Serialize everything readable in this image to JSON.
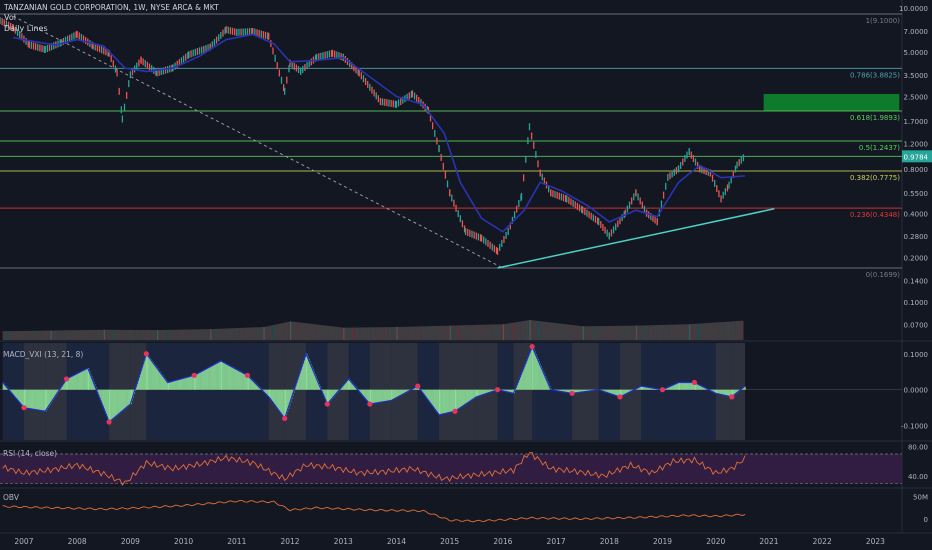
{
  "header": {
    "symbol_line": "TANZANIAN GOLD CORPORATION, 1W, NYSE ARCA & MKT",
    "vol_label": "Vol",
    "daily_lines_label": "Daily Lines"
  },
  "panes": {
    "macd_label": "MACD_VXI (13, 21, 8)",
    "rsi_label": "RSI (14, close)",
    "obv_label": "OBV"
  },
  "colors": {
    "background": "#131722",
    "candle_up": "#26a69a",
    "candle_down": "#ef5350",
    "ma_line": "#2934b3",
    "trendline": "#4dd0c8",
    "fib_line": "#4fa3b3",
    "green_level": "#5bd35b",
    "yellow_level": "#c8d25a",
    "red_level": "#e53935",
    "target_zone": "#0d7a2c",
    "macd_hist_pos": "#8ee09a",
    "macd_line": "#1e2fc8",
    "macd_dots": "#e8335a",
    "rsi_line": "#e0703a",
    "rsi_band": "#3a1f4a",
    "obv_line": "#e0703a"
  },
  "chart_data": {
    "type": "line",
    "title": "TANZANIAN GOLD CORPORATION, 1W, NYSE ARCA & MKT",
    "x_axis": {
      "ticks": [
        "2007",
        "2008",
        "2009",
        "2010",
        "2011",
        "2012",
        "2013",
        "2014",
        "2015",
        "2016",
        "2017",
        "2018",
        "2019",
        "2020",
        "2021",
        "2022",
        "2023"
      ],
      "range": [
        2006.55,
        2023.5
      ]
    },
    "price_axis": {
      "scale": "log",
      "range": [
        0.055,
        10.0
      ],
      "ticks": [
        "10.0000",
        "7.0000",
        "5.0000",
        "3.5000",
        "2.5000",
        "1.7000",
        "1.2000",
        "0.8000",
        "0.5500",
        "0.4000",
        "0.2800",
        "0.2000",
        "0.1400",
        "0.1000",
        "0.0700"
      ],
      "last_price_label": "0.9784",
      "last_price": 0.9784
    },
    "price_series": [
      {
        "x": 2006.55,
        "y": 8.2
      },
      {
        "x": 2006.8,
        "y": 7.3
      },
      {
        "x": 2007.1,
        "y": 5.6
      },
      {
        "x": 2007.4,
        "y": 5.2
      },
      {
        "x": 2007.7,
        "y": 5.8
      },
      {
        "x": 2008.0,
        "y": 6.6
      },
      {
        "x": 2008.3,
        "y": 5.5
      },
      {
        "x": 2008.6,
        "y": 4.9
      },
      {
        "x": 2008.75,
        "y": 3.6
      },
      {
        "x": 2008.85,
        "y": 1.75
      },
      {
        "x": 2009.0,
        "y": 3.5
      },
      {
        "x": 2009.2,
        "y": 4.4
      },
      {
        "x": 2009.5,
        "y": 3.6
      },
      {
        "x": 2009.8,
        "y": 3.9
      },
      {
        "x": 2010.1,
        "y": 4.8
      },
      {
        "x": 2010.5,
        "y": 5.4
      },
      {
        "x": 2010.8,
        "y": 7.1
      },
      {
        "x": 2011.0,
        "y": 6.8
      },
      {
        "x": 2011.3,
        "y": 6.9
      },
      {
        "x": 2011.6,
        "y": 6.4
      },
      {
        "x": 2011.9,
        "y": 2.7
      },
      {
        "x": 2012.0,
        "y": 4.2
      },
      {
        "x": 2012.2,
        "y": 3.7
      },
      {
        "x": 2012.5,
        "y": 4.6
      },
      {
        "x": 2012.8,
        "y": 4.9
      },
      {
        "x": 2013.0,
        "y": 4.6
      },
      {
        "x": 2013.3,
        "y": 3.6
      },
      {
        "x": 2013.7,
        "y": 2.3
      },
      {
        "x": 2014.0,
        "y": 2.2
      },
      {
        "x": 2014.3,
        "y": 2.6
      },
      {
        "x": 2014.6,
        "y": 2.0
      },
      {
        "x": 2014.8,
        "y": 1.1
      },
      {
        "x": 2015.0,
        "y": 0.55
      },
      {
        "x": 2015.3,
        "y": 0.3
      },
      {
        "x": 2015.6,
        "y": 0.27
      },
      {
        "x": 2015.9,
        "y": 0.22
      },
      {
        "x": 2016.1,
        "y": 0.3
      },
      {
        "x": 2016.35,
        "y": 0.52
      },
      {
        "x": 2016.5,
        "y": 1.55
      },
      {
        "x": 2016.7,
        "y": 0.75
      },
      {
        "x": 2016.9,
        "y": 0.55
      },
      {
        "x": 2017.2,
        "y": 0.5
      },
      {
        "x": 2017.5,
        "y": 0.42
      },
      {
        "x": 2017.8,
        "y": 0.35
      },
      {
        "x": 2018.0,
        "y": 0.28
      },
      {
        "x": 2018.3,
        "y": 0.4
      },
      {
        "x": 2018.5,
        "y": 0.55
      },
      {
        "x": 2018.7,
        "y": 0.4
      },
      {
        "x": 2018.9,
        "y": 0.35
      },
      {
        "x": 2019.1,
        "y": 0.7
      },
      {
        "x": 2019.3,
        "y": 0.8
      },
      {
        "x": 2019.5,
        "y": 1.05
      },
      {
        "x": 2019.7,
        "y": 0.8
      },
      {
        "x": 2019.9,
        "y": 0.75
      },
      {
        "x": 2020.1,
        "y": 0.5
      },
      {
        "x": 2020.25,
        "y": 0.62
      },
      {
        "x": 2020.4,
        "y": 0.85
      },
      {
        "x": 2020.55,
        "y": 0.98
      }
    ],
    "ma_series": [
      {
        "x": 2006.8,
        "y": 6.3
      },
      {
        "x": 2007.2,
        "y": 5.9
      },
      {
        "x": 2007.6,
        "y": 5.6
      },
      {
        "x": 2008.0,
        "y": 6.1
      },
      {
        "x": 2008.5,
        "y": 5.5
      },
      {
        "x": 2008.9,
        "y": 3.9
      },
      {
        "x": 2009.3,
        "y": 3.7
      },
      {
        "x": 2009.8,
        "y": 3.9
      },
      {
        "x": 2010.3,
        "y": 4.7
      },
      {
        "x": 2010.8,
        "y": 6.1
      },
      {
        "x": 2011.3,
        "y": 6.6
      },
      {
        "x": 2011.7,
        "y": 5.7
      },
      {
        "x": 2012.0,
        "y": 4.3
      },
      {
        "x": 2012.5,
        "y": 4.4
      },
      {
        "x": 2013.0,
        "y": 4.6
      },
      {
        "x": 2013.5,
        "y": 3.4
      },
      {
        "x": 2014.0,
        "y": 2.5
      },
      {
        "x": 2014.5,
        "y": 2.2
      },
      {
        "x": 2014.9,
        "y": 1.4
      },
      {
        "x": 2015.2,
        "y": 0.65
      },
      {
        "x": 2015.6,
        "y": 0.37
      },
      {
        "x": 2016.0,
        "y": 0.3
      },
      {
        "x": 2016.4,
        "y": 0.42
      },
      {
        "x": 2016.7,
        "y": 0.65
      },
      {
        "x": 2017.1,
        "y": 0.57
      },
      {
        "x": 2017.6,
        "y": 0.45
      },
      {
        "x": 2018.0,
        "y": 0.35
      },
      {
        "x": 2018.5,
        "y": 0.42
      },
      {
        "x": 2018.9,
        "y": 0.38
      },
      {
        "x": 2019.3,
        "y": 0.65
      },
      {
        "x": 2019.7,
        "y": 0.85
      },
      {
        "x": 2020.1,
        "y": 0.7
      },
      {
        "x": 2020.55,
        "y": 0.72
      }
    ],
    "fib_levels": [
      {
        "label": "1(9.1000)",
        "value": 9.1
      },
      {
        "label": "0.786(3.8825)",
        "value": 3.8825
      },
      {
        "label": "0.618(1.9893)",
        "value": 1.9893
      },
      {
        "label": "0.5(1.2437)",
        "value": 1.2437
      },
      {
        "label": "0.382(0.7775)",
        "value": 0.7775
      },
      {
        "label": "0.236(0.4348)",
        "value": 0.4348
      },
      {
        "label": "0(0.1699)",
        "value": 0.1699
      }
    ],
    "extra_levels": [
      0.9784
    ],
    "target_zone": {
      "x0": 2020.9,
      "x1": 2023.45,
      "y_low": 1.99,
      "y_high": 2.6
    },
    "downtrend_line": {
      "from": {
        "x": 2006.8,
        "y": 8.8
      },
      "to": {
        "x": 2016.0,
        "y": 0.17
      }
    },
    "uptrend_line": {
      "from": {
        "x": 2015.9,
        "y": 0.17
      },
      "to": {
        "x": 2021.1,
        "y": 0.43
      }
    },
    "macd": {
      "range": [
        -0.14,
        0.13
      ],
      "ticks": [
        "0.1000",
        "0.0000",
        "-0.1000"
      ],
      "series": [
        {
          "x": 2006.6,
          "y": 0.02
        },
        {
          "x": 2007.0,
          "y": -0.05
        },
        {
          "x": 2007.4,
          "y": -0.06
        },
        {
          "x": 2007.8,
          "y": 0.03
        },
        {
          "x": 2008.2,
          "y": 0.06
        },
        {
          "x": 2008.6,
          "y": -0.09
        },
        {
          "x": 2009.0,
          "y": -0.04
        },
        {
          "x": 2009.3,
          "y": 0.1
        },
        {
          "x": 2009.7,
          "y": 0.02
        },
        {
          "x": 2010.2,
          "y": 0.04
        },
        {
          "x": 2010.7,
          "y": 0.08
        },
        {
          "x": 2011.2,
          "y": 0.04
        },
        {
          "x": 2011.6,
          "y": -0.02
        },
        {
          "x": 2011.9,
          "y": -0.08
        },
        {
          "x": 2012.3,
          "y": 0.1
        },
        {
          "x": 2012.7,
          "y": -0.04
        },
        {
          "x": 2013.1,
          "y": 0.03
        },
        {
          "x": 2013.5,
          "y": -0.04
        },
        {
          "x": 2013.9,
          "y": -0.03
        },
        {
          "x": 2014.4,
          "y": 0.01
        },
        {
          "x": 2014.8,
          "y": -0.07
        },
        {
          "x": 2015.1,
          "y": -0.06
        },
        {
          "x": 2015.5,
          "y": -0.02
        },
        {
          "x": 2015.9,
          "y": 0.0
        },
        {
          "x": 2016.2,
          "y": -0.01
        },
        {
          "x": 2016.55,
          "y": 0.12
        },
        {
          "x": 2016.9,
          "y": 0.0
        },
        {
          "x": 2017.3,
          "y": -0.01
        },
        {
          "x": 2017.8,
          "y": 0.0
        },
        {
          "x": 2018.2,
          "y": -0.02
        },
        {
          "x": 2018.6,
          "y": 0.01
        },
        {
          "x": 2019.0,
          "y": 0.0
        },
        {
          "x": 2019.3,
          "y": 0.02
        },
        {
          "x": 2019.6,
          "y": 0.02
        },
        {
          "x": 2020.0,
          "y": -0.01
        },
        {
          "x": 2020.3,
          "y": -0.02
        },
        {
          "x": 2020.55,
          "y": 0.01
        }
      ]
    },
    "rsi": {
      "range": [
        25,
        85
      ],
      "ticks": [
        "80.00",
        "40.00"
      ],
      "upper": 70,
      "lower": 30,
      "series": [
        {
          "x": 2006.6,
          "y": 52
        },
        {
          "x": 2007.0,
          "y": 44
        },
        {
          "x": 2007.5,
          "y": 48
        },
        {
          "x": 2008.0,
          "y": 55
        },
        {
          "x": 2008.5,
          "y": 43
        },
        {
          "x": 2008.9,
          "y": 30
        },
        {
          "x": 2009.3,
          "y": 58
        },
        {
          "x": 2009.8,
          "y": 50
        },
        {
          "x": 2010.3,
          "y": 56
        },
        {
          "x": 2010.8,
          "y": 65
        },
        {
          "x": 2011.3,
          "y": 58
        },
        {
          "x": 2011.9,
          "y": 36
        },
        {
          "x": 2012.3,
          "y": 55
        },
        {
          "x": 2012.8,
          "y": 52
        },
        {
          "x": 2013.3,
          "y": 44
        },
        {
          "x": 2013.8,
          "y": 46
        },
        {
          "x": 2014.3,
          "y": 50
        },
        {
          "x": 2014.9,
          "y": 36
        },
        {
          "x": 2015.3,
          "y": 40
        },
        {
          "x": 2015.8,
          "y": 44
        },
        {
          "x": 2016.2,
          "y": 48
        },
        {
          "x": 2016.5,
          "y": 72
        },
        {
          "x": 2016.9,
          "y": 50
        },
        {
          "x": 2017.4,
          "y": 46
        },
        {
          "x": 2017.9,
          "y": 40
        },
        {
          "x": 2018.4,
          "y": 55
        },
        {
          "x": 2018.8,
          "y": 44
        },
        {
          "x": 2019.2,
          "y": 60
        },
        {
          "x": 2019.6,
          "y": 62
        },
        {
          "x": 2020.0,
          "y": 44
        },
        {
          "x": 2020.3,
          "y": 50
        },
        {
          "x": 2020.55,
          "y": 64
        }
      ]
    },
    "obv": {
      "range": [
        -25,
        65
      ],
      "ticks": [
        "50M",
        "0"
      ],
      "series": [
        {
          "x": 2006.6,
          "y": 28
        },
        {
          "x": 2007.5,
          "y": 25
        },
        {
          "x": 2008.5,
          "y": 22
        },
        {
          "x": 2009.0,
          "y": 24
        },
        {
          "x": 2010.0,
          "y": 30
        },
        {
          "x": 2011.0,
          "y": 40
        },
        {
          "x": 2011.7,
          "y": 38
        },
        {
          "x": 2012.0,
          "y": 20
        },
        {
          "x": 2012.5,
          "y": 25
        },
        {
          "x": 2013.5,
          "y": 20
        },
        {
          "x": 2014.5,
          "y": 18
        },
        {
          "x": 2015.0,
          "y": -3
        },
        {
          "x": 2015.5,
          "y": -5
        },
        {
          "x": 2016.0,
          "y": -2
        },
        {
          "x": 2016.5,
          "y": 2
        },
        {
          "x": 2017.5,
          "y": 0
        },
        {
          "x": 2018.5,
          "y": 3
        },
        {
          "x": 2019.5,
          "y": 8
        },
        {
          "x": 2020.0,
          "y": 6
        },
        {
          "x": 2020.55,
          "y": 10
        }
      ]
    },
    "volume": {
      "series": [
        {
          "x": 2006.6,
          "y": 0.2
        },
        {
          "x": 2007.5,
          "y": 0.25
        },
        {
          "x": 2008.5,
          "y": 0.3
        },
        {
          "x": 2009.5,
          "y": 0.28
        },
        {
          "x": 2010.5,
          "y": 0.35
        },
        {
          "x": 2011.5,
          "y": 0.5
        },
        {
          "x": 2012.0,
          "y": 0.9
        },
        {
          "x": 2013.0,
          "y": 0.45
        },
        {
          "x": 2014.0,
          "y": 0.5
        },
        {
          "x": 2015.0,
          "y": 0.6
        },
        {
          "x": 2016.0,
          "y": 0.7
        },
        {
          "x": 2016.5,
          "y": 1.0
        },
        {
          "x": 2017.5,
          "y": 0.55
        },
        {
          "x": 2018.5,
          "y": 0.6
        },
        {
          "x": 2019.5,
          "y": 0.7
        },
        {
          "x": 2020.5,
          "y": 0.95
        }
      ]
    }
  }
}
